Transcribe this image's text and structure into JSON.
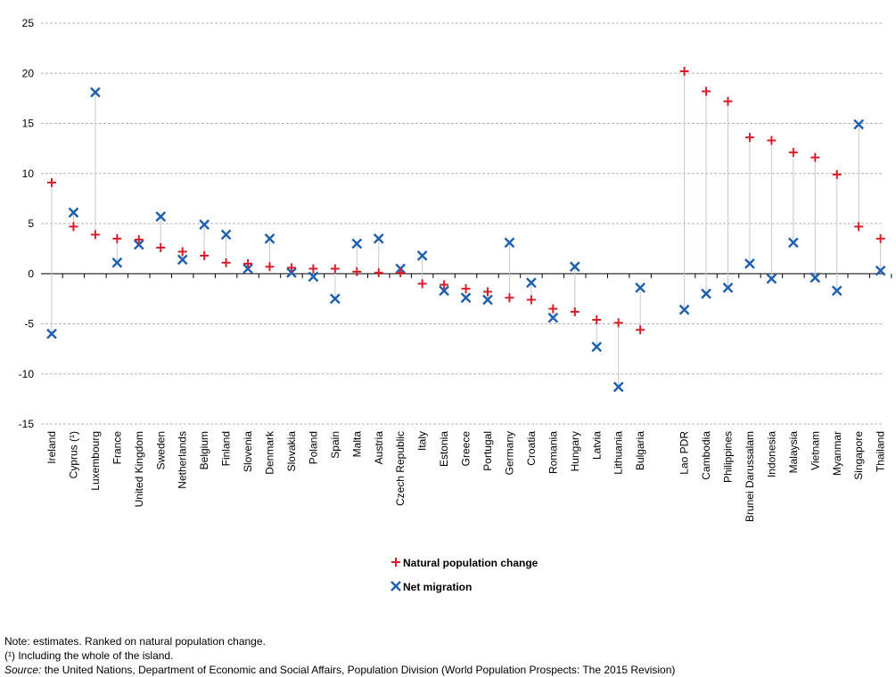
{
  "chart_data": {
    "type": "scatter",
    "ylim": [
      -15,
      25
    ],
    "yticks": [
      -15,
      -10,
      -5,
      0,
      5,
      10,
      15,
      20,
      25
    ],
    "grid": "horizontal dashed",
    "legend_placement": "bottom-center",
    "categories": [
      "Ireland",
      "Cyprus (¹)",
      "Luxembourg",
      "France",
      "United Kingdom",
      "Sweden",
      "Netherlands",
      "Belgium",
      "Finland",
      "Slovenia",
      "Denmark",
      "Slovakia",
      "Poland",
      "Spain",
      "Malta",
      "Austria",
      "Czech Republic",
      "Italy",
      "Estonia",
      "Greece",
      "Portugal",
      "Germany",
      "Croatia",
      "Romania",
      "Hungary",
      "Latvia",
      "Lithuania",
      "Bulgaria",
      "Lao PDR",
      "Cambodia",
      "Philippines",
      "Brunei Darussalam",
      "Indonesia",
      "Malaysia",
      "Vietnam",
      "Myanmar",
      "Singapore",
      "Thailand"
    ],
    "series": [
      {
        "name": "Natural population change",
        "color": "#d4202a",
        "marker": "plus",
        "values": [
          9.1,
          4.7,
          3.9,
          3.5,
          3.4,
          2.6,
          2.2,
          1.8,
          1.1,
          1.0,
          0.7,
          0.6,
          0.5,
          0.5,
          0.2,
          0.1,
          0.1,
          -1.0,
          -1.1,
          -1.5,
          -1.8,
          -2.4,
          -2.6,
          -3.5,
          -3.8,
          -4.6,
          -4.9,
          -5.6,
          20.2,
          18.2,
          17.2,
          13.6,
          13.3,
          12.1,
          11.6,
          9.9,
          4.7,
          3.5
        ]
      },
      {
        "name": "Net migration",
        "color": "#1f5fae",
        "marker": "cross",
        "values": [
          -6.0,
          6.1,
          18.1,
          1.1,
          2.9,
          5.7,
          1.4,
          4.9,
          3.9,
          0.5,
          3.5,
          0.1,
          -0.3,
          -2.5,
          3.0,
          3.5,
          0.5,
          1.8,
          -1.7,
          -2.4,
          -2.6,
          3.1,
          -0.9,
          -4.4,
          0.7,
          -7.3,
          -11.3,
          -1.4,
          -3.6,
          -2.0,
          -1.4,
          1.0,
          -0.5,
          3.1,
          -0.4,
          -1.7,
          14.9,
          0.3
        ]
      }
    ],
    "groups": [
      28,
      10
    ],
    "link_line_color": "#c8c8c8"
  },
  "notes": {
    "line1": "Note: estimates. Ranked on natural population change.",
    "line2": "(¹) Including the whole of the island.",
    "source_label": "Source:",
    "source_text": " the United Nations, Department of Economic and Social Affairs, Population Division (World Population Prospects: The 2015 Revision)"
  }
}
